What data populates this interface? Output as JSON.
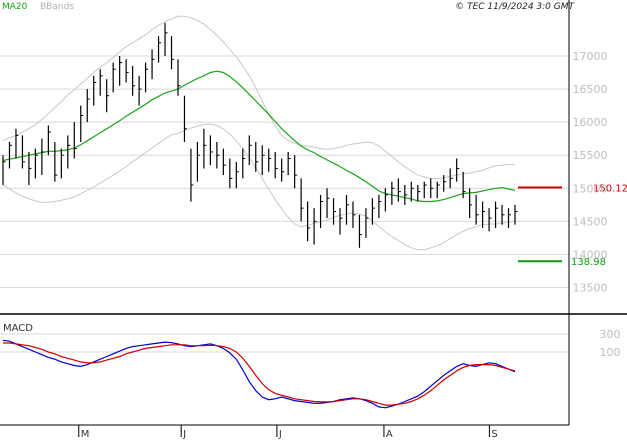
{
  "header": {
    "legend_ma": "MA20",
    "legend_bb": "BBands",
    "copyright": "© TEC 11/9/2024 3:0 GMT"
  },
  "colors": {
    "price": "#000000",
    "ma": "#1aa31a",
    "bbands": "#c8c8c8",
    "resistance": "#cc0000",
    "support": "#119911",
    "macd": "#0000cc",
    "signal": "#cc0000",
    "grid": "#d9d9d9",
    "axis_text": "#bdbdbd"
  },
  "chart_data": [
    {
      "type": "ohlc",
      "title": "",
      "x_tick_labels": [
        "M",
        "J",
        "J",
        "A",
        "S"
      ],
      "y_tick_labels": [
        "13500",
        "14000",
        "14500",
        "15000",
        "15500",
        "16000",
        "16500",
        "17000"
      ],
      "ylim": [
        13100,
        17650
      ],
      "grid": true,
      "levels": [
        {
          "name": "resistance",
          "value": 15012,
          "label": "150.12"
        },
        {
          "name": "support",
          "value": 13898,
          "label": "138.98"
        }
      ],
      "series": [
        {
          "name": "MA20",
          "type": "line",
          "values": [
            15420,
            15440,
            15460,
            15480,
            15500,
            15520,
            15540,
            15560,
            15560,
            15570,
            15580,
            15610,
            15660,
            15720,
            15780,
            15840,
            15900,
            15960,
            16020,
            16090,
            16150,
            16210,
            16270,
            16340,
            16390,
            16440,
            16470,
            16500,
            16560,
            16610,
            16660,
            16700,
            16750,
            16770,
            16750,
            16690,
            16610,
            16520,
            16420,
            16320,
            16220,
            16120,
            16010,
            15900,
            15810,
            15720,
            15640,
            15580,
            15540,
            15480,
            15430,
            15380,
            15330,
            15270,
            15220,
            15160,
            15100,
            15030,
            14960,
            14920,
            14900,
            14880,
            14860,
            14840,
            14810,
            14800,
            14800,
            14810,
            14830,
            14860,
            14890,
            14920,
            14930,
            14940,
            14960,
            14980,
            15000,
            15010,
            14990,
            14970
          ]
        },
        {
          "name": "BBands",
          "type": "band",
          "upper": [
            15720,
            15760,
            15800,
            15850,
            15900,
            15960,
            16040,
            16130,
            16220,
            16310,
            16410,
            16490,
            16580,
            16660,
            16750,
            16830,
            16900,
            16980,
            17060,
            17140,
            17200,
            17260,
            17320,
            17400,
            17460,
            17520,
            17560,
            17600,
            17600,
            17580,
            17540,
            17480,
            17400,
            17310,
            17210,
            17100,
            16990,
            16850,
            16700,
            16520,
            16320,
            16120,
            15940,
            15800,
            15720,
            15680,
            15650,
            15640,
            15620,
            15600,
            15590,
            15600,
            15620,
            15650,
            15670,
            15680,
            15700,
            15690,
            15640,
            15560,
            15480,
            15400,
            15330,
            15260,
            15200,
            15170,
            15150,
            15150,
            15160,
            15180,
            15200,
            15220,
            15230,
            15250,
            15270,
            15310,
            15340,
            15350,
            15360,
            15360
          ],
          "lower": [
            15050,
            14990,
            14930,
            14880,
            14840,
            14810,
            14790,
            14790,
            14800,
            14820,
            14840,
            14870,
            14920,
            14970,
            15020,
            15080,
            15140,
            15200,
            15260,
            15330,
            15400,
            15470,
            15540,
            15610,
            15680,
            15750,
            15810,
            15830,
            15870,
            15910,
            15940,
            15960,
            15970,
            15950,
            15900,
            15820,
            15720,
            15600,
            15460,
            15310,
            15150,
            14990,
            14830,
            14690,
            14560,
            14460,
            14420,
            14440,
            14470,
            14490,
            14520,
            14560,
            14590,
            14610,
            14630,
            14610,
            14580,
            14510,
            14420,
            14340,
            14270,
            14210,
            14150,
            14100,
            14070,
            14070,
            14100,
            14130,
            14180,
            14240,
            14300,
            14350,
            14390,
            14420,
            14450,
            14460,
            14460,
            14470,
            14490,
            14500
          ]
        }
      ],
      "ohlc": [
        {
          "h": 15500,
          "l": 15050,
          "c": 15400
        },
        {
          "h": 15700,
          "l": 15300,
          "c": 15650
        },
        {
          "h": 15900,
          "l": 15450,
          "c": 15800
        },
        {
          "h": 15800,
          "l": 15300,
          "c": 15400
        },
        {
          "h": 15550,
          "l": 15050,
          "c": 15300
        },
        {
          "h": 15600,
          "l": 15150,
          "c": 15500
        },
        {
          "h": 15750,
          "l": 15200,
          "c": 15550
        },
        {
          "h": 15950,
          "l": 15500,
          "c": 15850
        },
        {
          "h": 15700,
          "l": 15100,
          "c": 15200
        },
        {
          "h": 15600,
          "l": 15150,
          "c": 15500
        },
        {
          "h": 15800,
          "l": 15300,
          "c": 15650
        },
        {
          "h": 16000,
          "l": 15450,
          "c": 15600
        },
        {
          "h": 16250,
          "l": 15700,
          "c": 16100
        },
        {
          "h": 16500,
          "l": 16000,
          "c": 16350
        },
        {
          "h": 16700,
          "l": 16250,
          "c": 16600
        },
        {
          "h": 16800,
          "l": 16400,
          "c": 16700
        },
        {
          "h": 16650,
          "l": 16150,
          "c": 16400
        },
        {
          "h": 16900,
          "l": 16450,
          "c": 16800
        },
        {
          "h": 17000,
          "l": 16550,
          "c": 16900
        },
        {
          "h": 16950,
          "l": 16600,
          "c": 16750
        },
        {
          "h": 16850,
          "l": 16400,
          "c": 16550
        },
        {
          "h": 16700,
          "l": 16250,
          "c": 16500
        },
        {
          "h": 16900,
          "l": 16450,
          "c": 16800
        },
        {
          "h": 17100,
          "l": 16650,
          "c": 16950
        },
        {
          "h": 17300,
          "l": 16900,
          "c": 17200
        },
        {
          "h": 17500,
          "l": 17000,
          "c": 17350
        },
        {
          "h": 17300,
          "l": 16800,
          "c": 16950
        },
        {
          "h": 16950,
          "l": 16400,
          "c": 16550
        },
        {
          "h": 16400,
          "l": 15700,
          "c": 15900
        },
        {
          "h": 15600,
          "l": 14800,
          "c": 15050
        },
        {
          "h": 15700,
          "l": 15100,
          "c": 15500
        },
        {
          "h": 15900,
          "l": 15300,
          "c": 15650
        },
        {
          "h": 15800,
          "l": 15350,
          "c": 15550
        },
        {
          "h": 15700,
          "l": 15300,
          "c": 15500
        },
        {
          "h": 15600,
          "l": 15200,
          "c": 15350
        },
        {
          "h": 15450,
          "l": 15000,
          "c": 15150
        },
        {
          "h": 15400,
          "l": 15000,
          "c": 15250
        },
        {
          "h": 15600,
          "l": 15150,
          "c": 15450
        },
        {
          "h": 15800,
          "l": 15350,
          "c": 15650
        },
        {
          "h": 15700,
          "l": 15250,
          "c": 15400
        },
        {
          "h": 15650,
          "l": 15200,
          "c": 15500
        },
        {
          "h": 15600,
          "l": 15250,
          "c": 15450
        },
        {
          "h": 15550,
          "l": 15150,
          "c": 15300
        },
        {
          "h": 15450,
          "l": 15100,
          "c": 15250
        },
        {
          "h": 15550,
          "l": 15200,
          "c": 15450
        },
        {
          "h": 15500,
          "l": 15000,
          "c": 15200
        },
        {
          "h": 15150,
          "l": 14500,
          "c": 14700
        },
        {
          "h": 14800,
          "l": 14200,
          "c": 14400
        },
        {
          "h": 14700,
          "l": 14150,
          "c": 14500
        },
        {
          "h": 14900,
          "l": 14400,
          "c": 14800
        },
        {
          "h": 15000,
          "l": 14550,
          "c": 14850
        },
        {
          "h": 14850,
          "l": 14450,
          "c": 14650
        },
        {
          "h": 14700,
          "l": 14300,
          "c": 14550
        },
        {
          "h": 14900,
          "l": 14450,
          "c": 14750
        },
        {
          "h": 14800,
          "l": 14400,
          "c": 14600
        },
        {
          "h": 14600,
          "l": 14100,
          "c": 14300
        },
        {
          "h": 14700,
          "l": 14250,
          "c": 14550
        },
        {
          "h": 14850,
          "l": 14450,
          "c": 14700
        },
        {
          "h": 14900,
          "l": 14550,
          "c": 14800
        },
        {
          "h": 15000,
          "l": 14650,
          "c": 14900
        },
        {
          "h": 15100,
          "l": 14750,
          "c": 15000
        },
        {
          "h": 15150,
          "l": 14800,
          "c": 14950
        },
        {
          "h": 15050,
          "l": 14750,
          "c": 14900
        },
        {
          "h": 15100,
          "l": 14800,
          "c": 15000
        },
        {
          "h": 15050,
          "l": 14800,
          "c": 14950
        },
        {
          "h": 15100,
          "l": 14850,
          "c": 15050
        },
        {
          "h": 15150,
          "l": 14850,
          "c": 15000
        },
        {
          "h": 15100,
          "l": 14850,
          "c": 15050
        },
        {
          "h": 15200,
          "l": 14950,
          "c": 15100
        },
        {
          "h": 15300,
          "l": 15000,
          "c": 15150
        },
        {
          "h": 15450,
          "l": 15100,
          "c": 15300
        },
        {
          "h": 15250,
          "l": 14850,
          "c": 14950
        },
        {
          "h": 15000,
          "l": 14550,
          "c": 14750
        },
        {
          "h": 14900,
          "l": 14450,
          "c": 14600
        },
        {
          "h": 14800,
          "l": 14400,
          "c": 14650
        },
        {
          "h": 14700,
          "l": 14350,
          "c": 14550
        },
        {
          "h": 14800,
          "l": 14400,
          "c": 14700
        },
        {
          "h": 14750,
          "l": 14450,
          "c": 14600
        },
        {
          "h": 14700,
          "l": 14400,
          "c": 14600
        },
        {
          "h": 14750,
          "l": 14450,
          "c": 14650
        }
      ]
    },
    {
      "type": "line",
      "title": "MACD",
      "y_tick_labels": [
        "100",
        "300"
      ],
      "ylim": [
        -700,
        500
      ],
      "series": [
        {
          "name": "MACD",
          "values": [
            230,
            220,
            190,
            160,
            130,
            100,
            70,
            40,
            20,
            -10,
            -30,
            -50,
            -60,
            -40,
            -10,
            20,
            50,
            80,
            110,
            140,
            160,
            170,
            180,
            190,
            200,
            210,
            205,
            190,
            170,
            160,
            170,
            180,
            190,
            170,
            140,
            90,
            20,
            -100,
            -230,
            -330,
            -400,
            -430,
            -420,
            -400,
            -420,
            -440,
            -450,
            -460,
            -470,
            -470,
            -460,
            -450,
            -430,
            -420,
            -410,
            -420,
            -440,
            -470,
            -510,
            -520,
            -500,
            -480,
            -450,
            -420,
            -390,
            -340,
            -280,
            -220,
            -160,
            -110,
            -60,
            -30,
            -50,
            -60,
            -40,
            -20,
            -30,
            -60,
            -90,
            -120
          ]
        },
        {
          "name": "Signal",
          "values": [
            200,
            200,
            190,
            180,
            170,
            150,
            130,
            100,
            80,
            50,
            30,
            10,
            -10,
            -20,
            -20,
            -10,
            10,
            30,
            50,
            80,
            100,
            120,
            140,
            150,
            160,
            170,
            180,
            180,
            180,
            170,
            170,
            170,
            175,
            170,
            160,
            140,
            100,
            30,
            -60,
            -160,
            -250,
            -320,
            -360,
            -380,
            -400,
            -420,
            -430,
            -440,
            -450,
            -455,
            -455,
            -450,
            -440,
            -430,
            -420,
            -420,
            -430,
            -450,
            -470,
            -490,
            -490,
            -480,
            -470,
            -450,
            -420,
            -380,
            -330,
            -270,
            -210,
            -160,
            -110,
            -70,
            -50,
            -40,
            -40,
            -40,
            -50,
            -70,
            -90,
            -110
          ]
        }
      ]
    }
  ]
}
